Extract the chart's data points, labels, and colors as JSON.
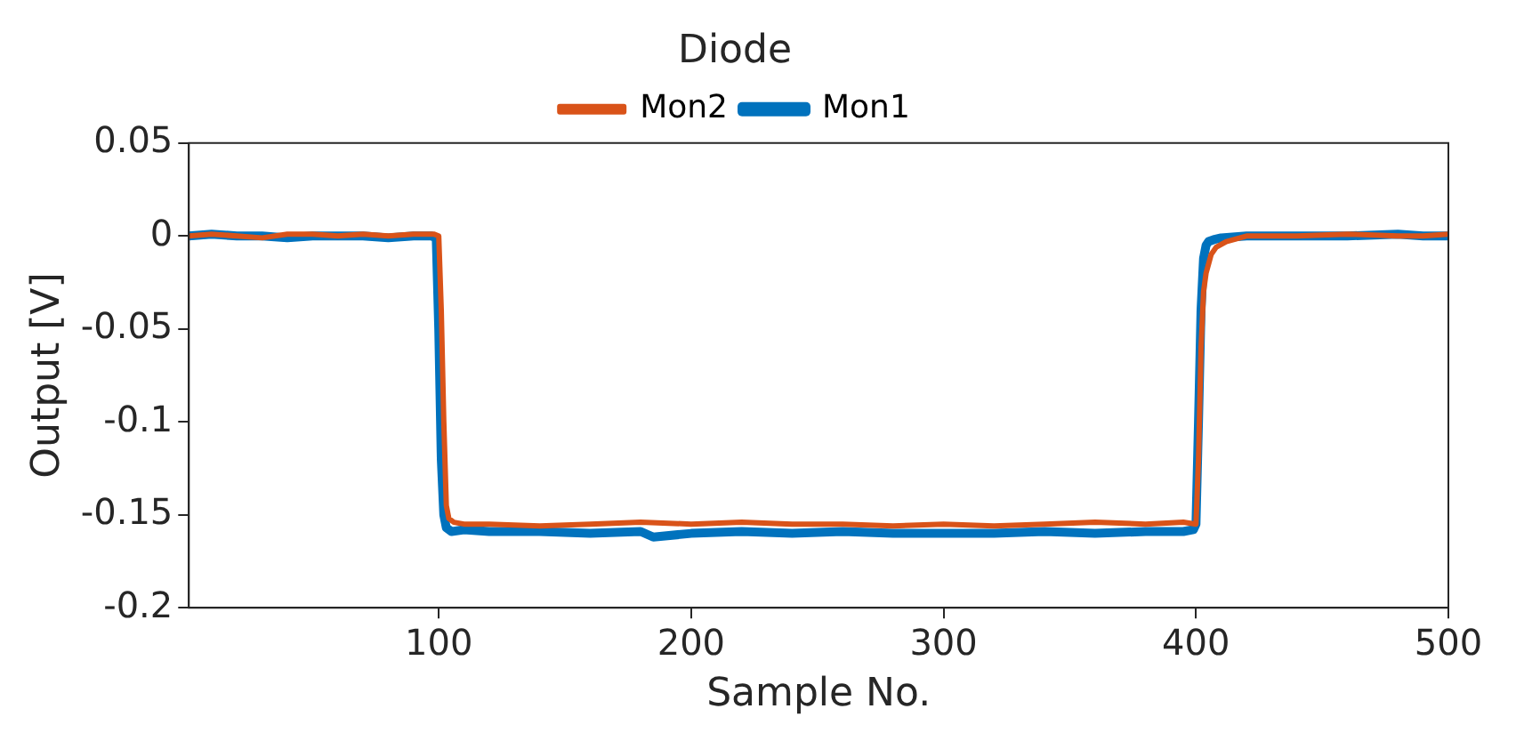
{
  "chart_data": {
    "type": "line",
    "title": "Diode",
    "xlabel": "Sample No.",
    "ylabel": "Output [V]",
    "xlim": [
      1,
      500
    ],
    "xticks": [
      100,
      200,
      300,
      400,
      500
    ],
    "ylim": [
      -0.2,
      0.05
    ],
    "yticks": [
      -0.2,
      -0.15,
      -0.1,
      -0.05,
      0,
      0.05
    ],
    "legend": "top",
    "marker": "none",
    "line_style": "solid",
    "series": [
      {
        "name": "Mon1",
        "color": "#0072bd",
        "x": [
          1,
          10,
          20,
          30,
          40,
          50,
          60,
          70,
          80,
          90,
          97,
          99,
          100,
          101,
          102,
          103,
          105,
          110,
          120,
          140,
          160,
          180,
          185,
          200,
          220,
          240,
          260,
          280,
          300,
          320,
          340,
          360,
          380,
          395,
          399,
          400,
          401,
          402,
          403,
          404,
          405,
          407,
          410,
          420,
          440,
          460,
          480,
          490,
          500
        ],
        "values": [
          0,
          0.001,
          0,
          0,
          -0.001,
          0,
          0,
          0,
          -0.001,
          0,
          0,
          -0.001,
          -0.05,
          -0.12,
          -0.15,
          -0.157,
          -0.159,
          -0.158,
          -0.159,
          -0.159,
          -0.16,
          -0.159,
          -0.162,
          -0.16,
          -0.159,
          -0.16,
          -0.159,
          -0.16,
          -0.16,
          -0.16,
          -0.159,
          -0.16,
          -0.159,
          -0.159,
          -0.158,
          -0.155,
          -0.1,
          -0.04,
          -0.012,
          -0.005,
          -0.003,
          -0.002,
          -0.001,
          0,
          0,
          0,
          0.001,
          0,
          0
        ]
      },
      {
        "name": "Mon2",
        "color": "#d95319",
        "x": [
          1,
          10,
          20,
          30,
          40,
          50,
          60,
          70,
          80,
          90,
          98,
          100,
          101,
          102,
          103,
          104,
          106,
          110,
          120,
          140,
          160,
          180,
          200,
          220,
          240,
          260,
          280,
          300,
          320,
          340,
          360,
          380,
          395,
          400,
          401,
          402,
          403,
          404,
          405,
          406,
          408,
          412,
          420,
          440,
          460,
          480,
          490,
          500
        ],
        "values": [
          0,
          0.001,
          0,
          -0.001,
          0.001,
          0.001,
          0,
          0.001,
          0,
          0.001,
          0.001,
          0,
          -0.04,
          -0.1,
          -0.145,
          -0.152,
          -0.154,
          -0.155,
          -0.155,
          -0.156,
          -0.155,
          -0.154,
          -0.155,
          -0.154,
          -0.155,
          -0.155,
          -0.156,
          -0.155,
          -0.156,
          -0.155,
          -0.154,
          -0.155,
          -0.154,
          -0.155,
          -0.12,
          -0.06,
          -0.03,
          -0.02,
          -0.015,
          -0.01,
          -0.006,
          -0.003,
          0,
          0,
          0.001,
          0,
          0,
          0.001
        ]
      }
    ]
  }
}
